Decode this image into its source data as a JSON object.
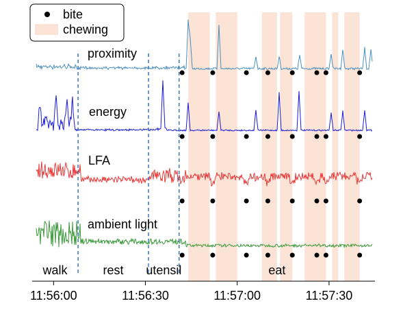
{
  "chart_data": {
    "type": "line",
    "x_ticks": [
      "11:56:00",
      "11:56:30",
      "11:57:00",
      "11:57:30"
    ],
    "xlim": [
      "11:55:53",
      "11:57:45"
    ],
    "legend": {
      "placement": "top-left",
      "entries": [
        {
          "label": "bite",
          "marker": "dot"
        },
        {
          "label": "chewing",
          "marker": "shaded-band"
        }
      ]
    },
    "series": [
      {
        "name": "proximity",
        "color": "#4a8fc0"
      },
      {
        "name": "energy",
        "color": "#1a1ad8"
      },
      {
        "name": "LFA",
        "color": "#e83838"
      },
      {
        "name": "ambient light",
        "color": "#3a9a3a"
      }
    ],
    "phase_boundaries": [
      "11:56:08",
      "11:56:31",
      "11:56:41"
    ],
    "phases": [
      {
        "label": "walk",
        "start": "11:55:53",
        "end": "11:56:08"
      },
      {
        "label": "rest",
        "start": "11:56:08",
        "end": "11:56:31"
      },
      {
        "label": "utensil",
        "start": "11:56:31",
        "end": "11:56:41"
      },
      {
        "label": "eat",
        "start": "11:56:41",
        "end": "11:57:45"
      }
    ],
    "chewing_bands": [
      [
        "11:56:44",
        "11:56:51"
      ],
      [
        "11:56:53",
        "11:57:00"
      ],
      [
        "11:57:08",
        "11:57:13"
      ],
      [
        "11:57:14",
        "11:57:18"
      ],
      [
        "11:57:22",
        "11:57:29"
      ],
      [
        "11:57:31",
        "11:57:33"
      ],
      [
        "11:57:35",
        "11:57:40"
      ]
    ],
    "bites": [
      "11:56:42",
      "11:56:52",
      "11:57:03",
      "11:57:10",
      "11:57:18",
      "11:57:26",
      "11:57:29",
      "11:57:40"
    ],
    "colors": {
      "chewing": "#fbe3d6",
      "phase_line": "#3a78c0",
      "bite": "#000000"
    }
  }
}
